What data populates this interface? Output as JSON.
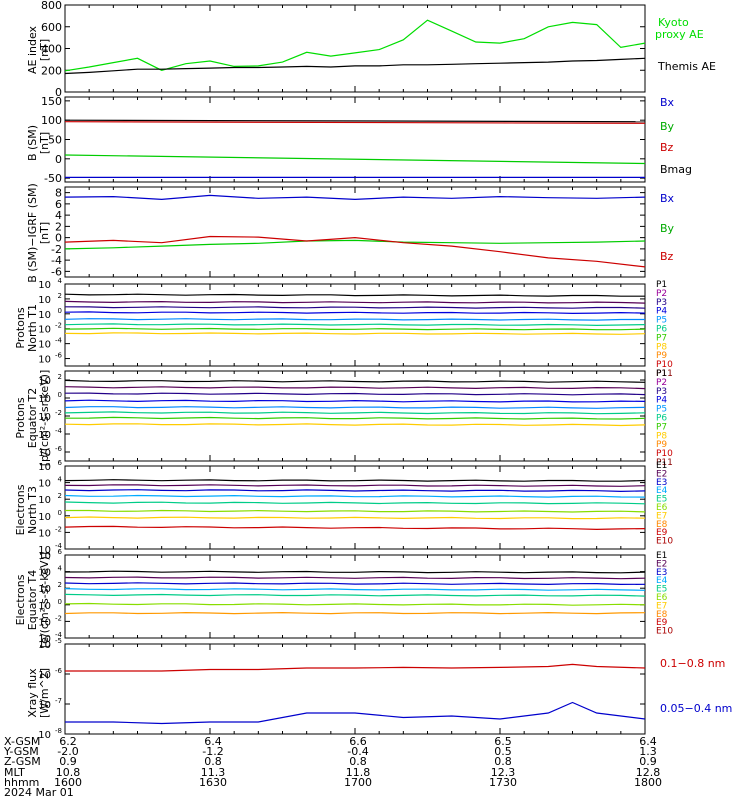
{
  "chart_data": [
    {
      "type": "line",
      "ylabel": "AE index [nT]",
      "ylim": [
        0,
        800
      ],
      "yticks": [
        0,
        200,
        400,
        600,
        800
      ],
      "log": false,
      "x": [
        1600,
        1605,
        1610,
        1615,
        1620,
        1625,
        1630,
        1635,
        1640,
        1645,
        1650,
        1655,
        1700,
        1705,
        1710,
        1715,
        1720,
        1725,
        1730,
        1735,
        1740,
        1745,
        1750,
        1755,
        1800
      ],
      "series": [
        {
          "name": "Kyoto proxy AE",
          "color": "#00dd00",
          "values": [
            195,
            230,
            270,
            310,
            200,
            260,
            285,
            235,
            240,
            275,
            365,
            330,
            360,
            390,
            480,
            660,
            560,
            460,
            450,
            490,
            600,
            640,
            620,
            410,
            450
          ]
        },
        {
          "name": "Themis AE",
          "color": "#000000",
          "values": [
            170,
            180,
            195,
            210,
            210,
            215,
            220,
            225,
            225,
            230,
            235,
            230,
            240,
            240,
            250,
            250,
            255,
            260,
            265,
            270,
            275,
            285,
            290,
            300,
            310
          ]
        }
      ]
    },
    {
      "type": "line",
      "ylabel": "B (SM) [nT]",
      "ylim": [
        -60,
        160
      ],
      "yticks": [
        -50,
        0,
        50,
        100,
        150
      ],
      "log": false,
      "x": [
        1600,
        1800
      ],
      "series": [
        {
          "name": "Bx",
          "color": "#0000cc",
          "values": [
            -48,
            -48
          ]
        },
        {
          "name": "By",
          "color": "#00cc00",
          "values": [
            10,
            -12
          ]
        },
        {
          "name": "Bz",
          "color": "#cc0000",
          "values": [
            96,
            92
          ]
        },
        {
          "name": "Bmag",
          "color": "#000000",
          "values": [
            100,
            96
          ]
        }
      ]
    },
    {
      "type": "line",
      "ylabel": "B (SM)-IGRF (SM) [nT]",
      "ylim": [
        -7,
        9
      ],
      "yticks": [
        -6,
        -4,
        -2,
        0,
        2,
        4,
        6,
        8
      ],
      "log": false,
      "x": [
        1600,
        1610,
        1620,
        1630,
        1640,
        1650,
        1700,
        1710,
        1720,
        1730,
        1740,
        1750,
        1800
      ],
      "series": [
        {
          "name": "Bx",
          "color": "#0000cc",
          "values": [
            7.2,
            7.3,
            6.8,
            7.5,
            7.0,
            7.2,
            6.8,
            7.2,
            7.0,
            7.3,
            7.1,
            7.0,
            7.2
          ]
        },
        {
          "name": "By",
          "color": "#00cc00",
          "values": [
            -2.0,
            -1.8,
            -1.5,
            -1.2,
            -1.0,
            -0.6,
            -0.5,
            -0.8,
            -0.9,
            -1.0,
            -0.9,
            -0.8,
            -0.6
          ]
        },
        {
          "name": "Bz",
          "color": "#cc0000",
          "values": [
            -0.8,
            -0.5,
            -0.9,
            0.2,
            0.1,
            -0.6,
            0.0,
            -0.9,
            -1.5,
            -2.5,
            -3.6,
            -4.2,
            -5.2
          ]
        }
      ]
    },
    {
      "type": "line",
      "ylabel": "Protons North T1",
      "ylim": [
        -7,
        4
      ],
      "yticks": [
        -6,
        -4,
        -2,
        0,
        2,
        4
      ],
      "log": true,
      "series": [
        {
          "name": "P1",
          "color": "#000000",
          "values": [
            2.6,
            2.4
          ]
        },
        {
          "name": "P2",
          "color": "#550055",
          "values": [
            1.6,
            1.5
          ]
        },
        {
          "name": "P3",
          "color": "#220088",
          "values": [
            0.9,
            0.8
          ]
        },
        {
          "name": "P4",
          "color": "#0000dd",
          "values": [
            0.2,
            0.1
          ]
        },
        {
          "name": "P5",
          "color": "#0088ff",
          "values": [
            -0.7,
            -0.8
          ]
        },
        {
          "name": "P6",
          "color": "#00cc88",
          "values": [
            -1.4,
            -1.5
          ]
        },
        {
          "name": "P7",
          "color": "#33cc00",
          "values": [
            -2.0,
            -2.1
          ]
        },
        {
          "name": "P8",
          "color": "#ffcc00",
          "values": [
            -2.6,
            -2.7
          ]
        }
      ]
    },
    {
      "type": "line",
      "ylabel": "Protons Equator T2 [p/(cm^2-s-sr-keV)]",
      "ylim": [
        -7,
        3
      ],
      "yticks": [
        -6,
        -4,
        -2,
        0,
        2
      ],
      "log": true,
      "series": [
        {
          "name": "P1",
          "color": "#000000",
          "values": [
            1.9,
            1.8
          ]
        },
        {
          "name": "P2",
          "color": "#550055",
          "values": [
            1.2,
            1.1
          ]
        },
        {
          "name": "P3",
          "color": "#220088",
          "values": [
            0.5,
            0.4
          ]
        },
        {
          "name": "P4",
          "color": "#0000dd",
          "values": [
            -0.3,
            -0.4
          ]
        },
        {
          "name": "P5",
          "color": "#0088ff",
          "values": [
            -1.0,
            -1.1
          ]
        },
        {
          "name": "P6",
          "color": "#00cc88",
          "values": [
            -1.6,
            -1.7
          ]
        },
        {
          "name": "P7",
          "color": "#33cc00",
          "values": [
            -2.2,
            -2.3
          ]
        },
        {
          "name": "P8",
          "color": "#ffcc00",
          "values": [
            -2.9,
            -3.0
          ]
        }
      ]
    },
    {
      "type": "line",
      "ylabel": "Electrons North T3",
      "ylim": [
        -4,
        6
      ],
      "yticks": [
        -4,
        -2,
        0,
        2,
        4,
        6
      ],
      "log": true,
      "series": [
        {
          "name": "E1",
          "color": "#000000",
          "values": [
            4.3,
            4.2
          ]
        },
        {
          "name": "E2",
          "color": "#550055",
          "values": [
            3.7,
            3.6
          ]
        },
        {
          "name": "E3",
          "color": "#0000cc",
          "values": [
            3.1,
            3.0
          ]
        },
        {
          "name": "E4",
          "color": "#00aaff",
          "values": [
            2.4,
            2.3
          ]
        },
        {
          "name": "E5",
          "color": "#00cc88",
          "values": [
            1.6,
            1.5
          ]
        },
        {
          "name": "E6",
          "color": "#88dd00",
          "values": [
            0.6,
            0.5
          ]
        },
        {
          "name": "E7",
          "color": "#ffcc00",
          "values": [
            -0.2,
            -0.3
          ]
        },
        {
          "name": "E8",
          "color": "#cc0000",
          "values": [
            -1.3,
            -1.6
          ]
        }
      ]
    },
    {
      "type": "line",
      "ylabel": "Electrons Equator T4 [e/(cm^2-s-sr-keV)]",
      "ylim": [
        -4,
        6
      ],
      "yticks": [
        -4,
        -2,
        0,
        2,
        4,
        6
      ],
      "log": true,
      "series": [
        {
          "name": "E1",
          "color": "#000000",
          "values": [
            4.0,
            3.9
          ]
        },
        {
          "name": "E2",
          "color": "#550055",
          "values": [
            3.3,
            3.2
          ]
        },
        {
          "name": "E3",
          "color": "#0000cc",
          "values": [
            2.6,
            2.5
          ]
        },
        {
          "name": "E4",
          "color": "#00aaff",
          "values": [
            1.9,
            1.8
          ]
        },
        {
          "name": "E5",
          "color": "#00cc88",
          "values": [
            1.2,
            1.1
          ]
        },
        {
          "name": "E6",
          "color": "#88dd00",
          "values": [
            0.1,
            0.0
          ]
        },
        {
          "name": "E7",
          "color": "#ff9900",
          "values": [
            -1.0,
            -1.0
          ]
        }
      ]
    },
    {
      "type": "line",
      "ylabel": "Xray flux [W/m^2]",
      "ylim": [
        -8,
        -5
      ],
      "yticks": [
        -8,
        -7,
        -6,
        -5
      ],
      "log": true,
      "x": [
        1600,
        1610,
        1620,
        1630,
        1640,
        1650,
        1700,
        1710,
        1720,
        1730,
        1740,
        1745,
        1750,
        1800
      ],
      "series": [
        {
          "name": "0.1-0.8 nm",
          "color": "#cc0000",
          "values": [
            -5.9,
            -5.9,
            -5.9,
            -5.85,
            -5.85,
            -5.8,
            -5.8,
            -5.78,
            -5.8,
            -5.78,
            -5.75,
            -5.68,
            -5.75,
            -5.8
          ]
        },
        {
          "name": "0.05-0.4 nm",
          "color": "#0000cc",
          "values": [
            -7.6,
            -7.6,
            -7.65,
            -7.6,
            -7.6,
            -7.3,
            -7.3,
            -7.45,
            -7.4,
            -7.5,
            -7.3,
            -6.95,
            -7.3,
            -7.5
          ]
        }
      ]
    }
  ],
  "labels": {
    "ae_ylabel1": "AE index",
    "ae_ylabel2": "[nT]",
    "ae_legend": [
      "Kyoto",
      "proxy AE",
      "Themis AE"
    ],
    "b_ylabel1": "B (SM)",
    "b_ylabel2": "[nT]",
    "b_legend": [
      "Bx",
      "By",
      "Bz",
      "Bmag"
    ],
    "d_ylabel1": "B (SM)−IGRF (SM)",
    "d_ylabel2": "[nT]",
    "d_legend": [
      "Bx",
      "By",
      "Bz"
    ],
    "p1_ylabel1": "Protons",
    "p1_ylabel2": "North T1",
    "p_legend": [
      "P1",
      "P2",
      "P3",
      "P4",
      "P5",
      "P6",
      "P7",
      "P8",
      "P9",
      "P10",
      "P11"
    ],
    "p2_ylabel1": "Protons",
    "p2_ylabel2": "Equator T2",
    "p2_ylabel3": "[p/(cm²-s-sr-keV)]",
    "e1_ylabel1": "Electrons",
    "e1_ylabel2": "North T3",
    "e_legend": [
      "E1",
      "E2",
      "E3",
      "E4",
      "E5",
      "E6",
      "E7",
      "E8",
      "E9",
      "E10"
    ],
    "e2_ylabel1": "Electrons",
    "e2_ylabel2": "Equator T4",
    "e2_ylabel3": "[e/(cm²-s-sr-keV)]",
    "x_ylabel1": "Xray flux",
    "x_ylabel2": "[W/m^2]",
    "x_legend": [
      "0.1−0.8 nm",
      "0.05−0.4 nm"
    ]
  },
  "ticks": {
    "ae": [
      "800",
      "600",
      "400",
      "200",
      "0"
    ],
    "b": [
      "150",
      "100",
      "50",
      "0",
      "-50"
    ],
    "d": [
      "8",
      "6",
      "4",
      "2",
      "0",
      "-2",
      "-4",
      "-6"
    ]
  },
  "footer": {
    "row_labels": [
      "X-GSM",
      "Y-GSM",
      "Z-GSM",
      "MLT",
      "hhmm",
      "2024 Mar 01"
    ],
    "columns": [
      [
        "6.2",
        "-2.0",
        "0.9",
        "10.8",
        "1600"
      ],
      [
        "6.4",
        "-1.2",
        "0.8",
        "11.3",
        "1630"
      ],
      [
        "6.6",
        "-0.4",
        "0.8",
        "11.8",
        "1700"
      ],
      [
        "6.5",
        "0.5",
        "0.8",
        "12.3",
        "1730"
      ],
      [
        "6.4",
        "1.3",
        "0.9",
        "12.8",
        "1800"
      ]
    ]
  },
  "colors": {
    "p": [
      "#000000",
      "#990099",
      "#220088",
      "#0000dd",
      "#0099ff",
      "#00cc88",
      "#33cc00",
      "#ffcc00",
      "#ff8800",
      "#cc0000",
      "#880000"
    ],
    "e": [
      "#000000",
      "#550055",
      "#0000cc",
      "#00aaff",
      "#00cc88",
      "#88dd00",
      "#ffcc00",
      "#ff8800",
      "#cc0000",
      "#aa0000"
    ]
  }
}
